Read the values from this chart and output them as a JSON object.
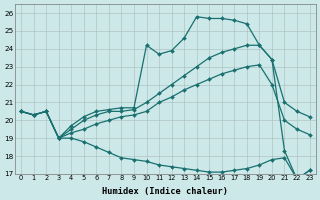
{
  "xlabel": "Humidex (Indice chaleur)",
  "xlim": [
    -0.5,
    23.5
  ],
  "ylim": [
    17,
    26.5
  ],
  "yticks": [
    17,
    18,
    19,
    20,
    21,
    22,
    23,
    24,
    25,
    26
  ],
  "xticks": [
    0,
    1,
    2,
    3,
    4,
    5,
    6,
    7,
    8,
    9,
    10,
    11,
    12,
    13,
    14,
    15,
    16,
    17,
    18,
    19,
    20,
    21,
    22,
    23
  ],
  "bg_color": "#cce8e8",
  "grid_color": "#aabbbb",
  "line_color": "#1a7070",
  "line1_max": [
    20.5,
    20.3,
    20.5,
    19.0,
    19.7,
    20.2,
    20.5,
    20.6,
    20.7,
    20.7,
    24.2,
    23.7,
    23.9,
    24.6,
    25.8,
    25.7,
    25.7,
    25.6,
    25.4,
    24.2,
    23.4,
    18.3,
    16.7,
    17.2
  ],
  "line2_hi": [
    20.5,
    20.3,
    20.5,
    19.0,
    19.5,
    20.0,
    20.3,
    20.5,
    20.5,
    20.6,
    21.0,
    21.5,
    22.0,
    22.5,
    23.0,
    23.5,
    23.8,
    24.0,
    24.2,
    24.2,
    23.4,
    21.0,
    20.5,
    20.2
  ],
  "line3_lo": [
    20.5,
    20.3,
    20.5,
    19.0,
    19.3,
    19.5,
    19.8,
    20.0,
    20.2,
    20.3,
    20.5,
    21.0,
    21.3,
    21.7,
    22.0,
    22.3,
    22.6,
    22.8,
    23.0,
    23.1,
    22.0,
    20.0,
    19.5,
    19.2
  ],
  "line4_min": [
    20.5,
    20.3,
    20.5,
    19.0,
    19.0,
    18.8,
    18.5,
    18.2,
    17.9,
    17.8,
    17.7,
    17.5,
    17.4,
    17.3,
    17.2,
    17.1,
    17.1,
    17.2,
    17.3,
    17.5,
    17.8,
    17.9,
    16.7,
    17.2
  ]
}
